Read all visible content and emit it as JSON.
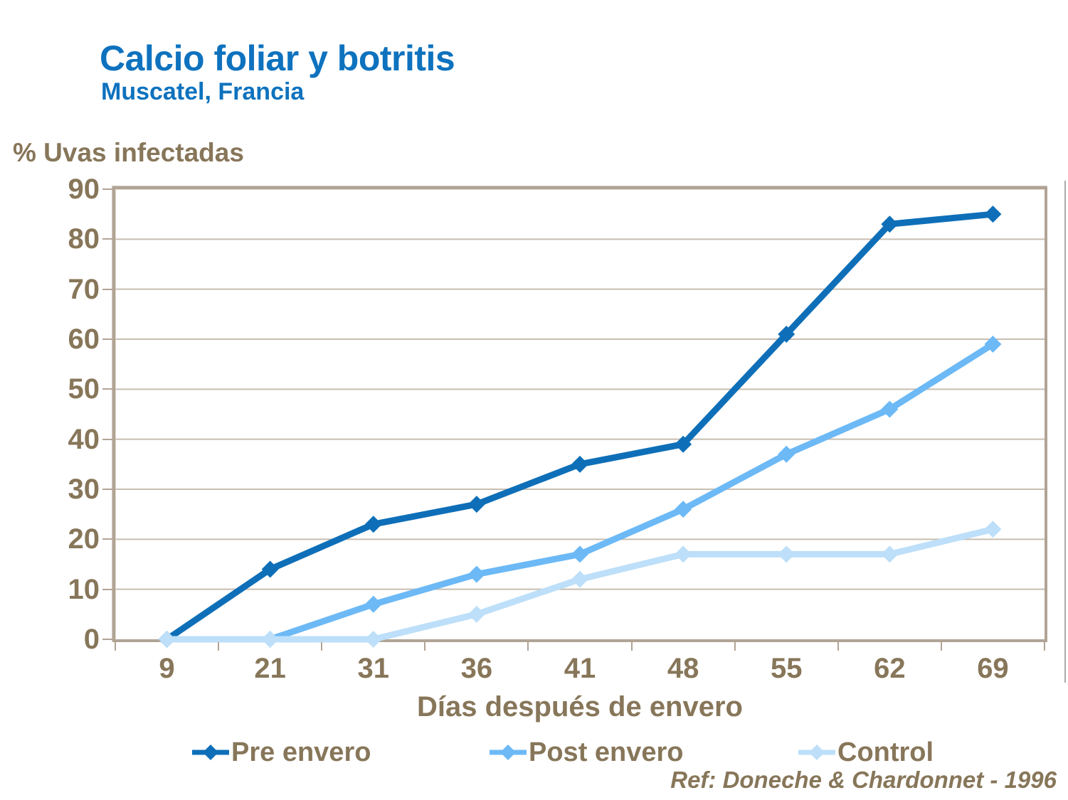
{
  "header": {
    "title": "Calcio foliar y botritis",
    "subtitle": "Muscatel, Francia"
  },
  "reference": "Ref: Doneche & Chardonnet - 1996",
  "colors": {
    "title_blue": "#0E72BE",
    "text_brown": "#877659",
    "grid": "#C7BDB1",
    "frame": "#B1A495"
  },
  "chart_data": {
    "type": "line",
    "title": "Calcio foliar y botritis",
    "subtitle": "Muscatel, Francia",
    "xlabel": "Días después de envero",
    "ylabel": "% Uvas infectadas",
    "x": [
      9,
      21,
      31,
      36,
      41,
      48,
      55,
      62,
      69
    ],
    "series": [
      {
        "name": "Pre envero",
        "color": "#0E6FB8",
        "values": [
          0,
          14,
          23,
          27,
          35,
          39,
          61,
          83,
          85
        ]
      },
      {
        "name": "Post envero",
        "color": "#6CB9F6",
        "values": [
          0,
          0,
          7,
          13,
          17,
          26,
          37,
          46,
          59
        ]
      },
      {
        "name": "Control",
        "color": "#BDDFF9",
        "values": [
          0,
          0,
          0,
          5,
          12,
          17,
          17,
          17,
          22
        ]
      }
    ],
    "ylim": [
      0,
      90
    ],
    "ytick_step": 10,
    "grid": true,
    "legend_position": "bottom",
    "marker": "diamond"
  }
}
